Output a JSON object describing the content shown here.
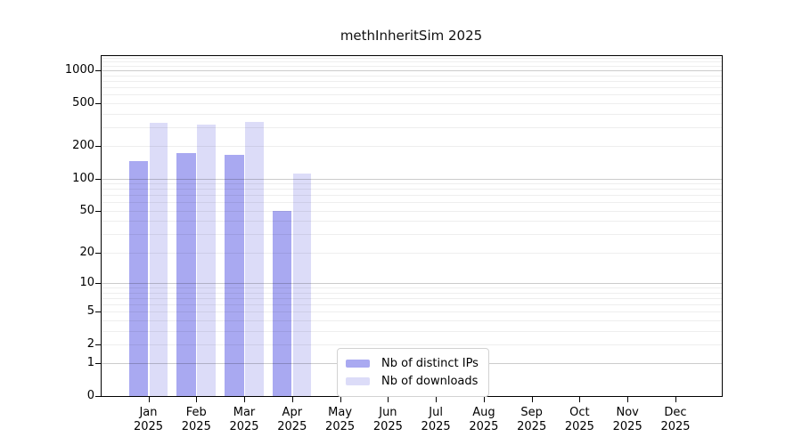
{
  "title": "methInheritSim 2025",
  "chart_data": {
    "type": "bar",
    "title": "methInheritSim 2025",
    "yscale": "log1p",
    "categories": [
      "Jan",
      "Feb",
      "Mar",
      "Apr",
      "May",
      "Jun",
      "Jul",
      "Aug",
      "Sep",
      "Oct",
      "Nov",
      "Dec"
    ],
    "year_label": "2025",
    "series": [
      {
        "name": "Nb of distinct IPs",
        "color": "#a9a9f1",
        "values": [
          145,
          172,
          166,
          50,
          0,
          0,
          0,
          0,
          0,
          0,
          0,
          0
        ]
      },
      {
        "name": "Nb of downloads",
        "color": "#dcdcf8",
        "values": [
          325,
          316,
          337,
          111,
          0,
          0,
          0,
          0,
          0,
          0,
          0,
          0
        ]
      }
    ],
    "y_ticks": [
      0,
      1,
      2,
      5,
      10,
      20,
      50,
      100,
      200,
      500,
      1000
    ],
    "ylim": [
      0,
      1350
    ],
    "xlabel": "",
    "ylabel": "",
    "grid": true,
    "legend_position": "bottom-center"
  },
  "legend": {
    "items": [
      {
        "label": "Nb of distinct IPs",
        "color": "#a9a9f1"
      },
      {
        "label": "Nb of downloads",
        "color": "#dcdcf8"
      }
    ]
  },
  "colors": {
    "bar_distinct_ips": "#a9a9f1",
    "bar_downloads": "#dcdcf8",
    "axis": "#000000",
    "grid_major": "#cccccc",
    "grid_minor": "#ededed",
    "background": "#ffffff",
    "legend_border": "#d2d2d2"
  }
}
